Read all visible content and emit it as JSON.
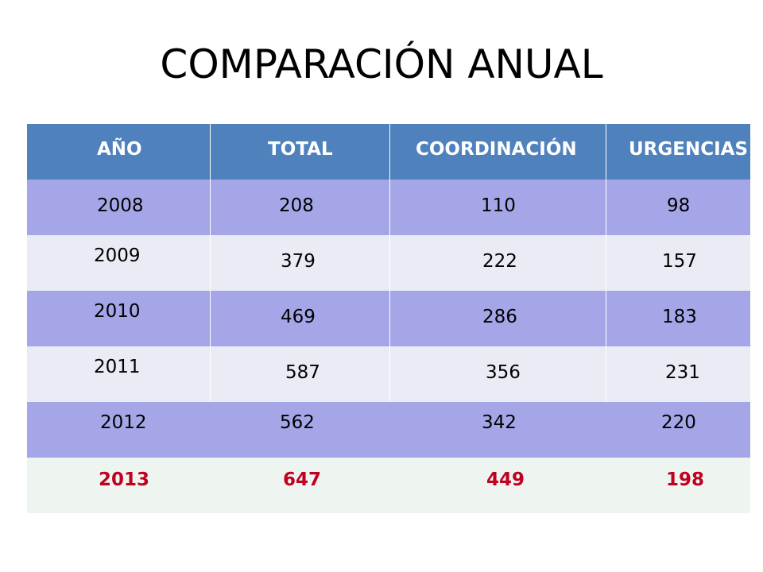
{
  "title": "COMPARACIÓN ANUAL",
  "table": {
    "headers": [
      "AÑO",
      "TOTAL",
      "COORDINACIÓN",
      "URGENCIAS"
    ],
    "rows": [
      [
        "2008",
        "208",
        "110",
        "98"
      ],
      [
        "2009",
        "379",
        "222",
        "157"
      ],
      [
        "2010",
        "469",
        "286",
        "183"
      ],
      [
        "2011",
        "587",
        "356",
        "231"
      ],
      [
        "2012",
        "562",
        "342",
        "220"
      ],
      [
        "2013",
        "647",
        "449",
        "198"
      ]
    ]
  },
  "colors": {
    "header_bg": "#4f81bd",
    "band_dark": "#a4a6e8",
    "band_light": "#e9ecf4",
    "highlight_row_bg": "#eef5f0",
    "highlight_text": "#c00020"
  }
}
